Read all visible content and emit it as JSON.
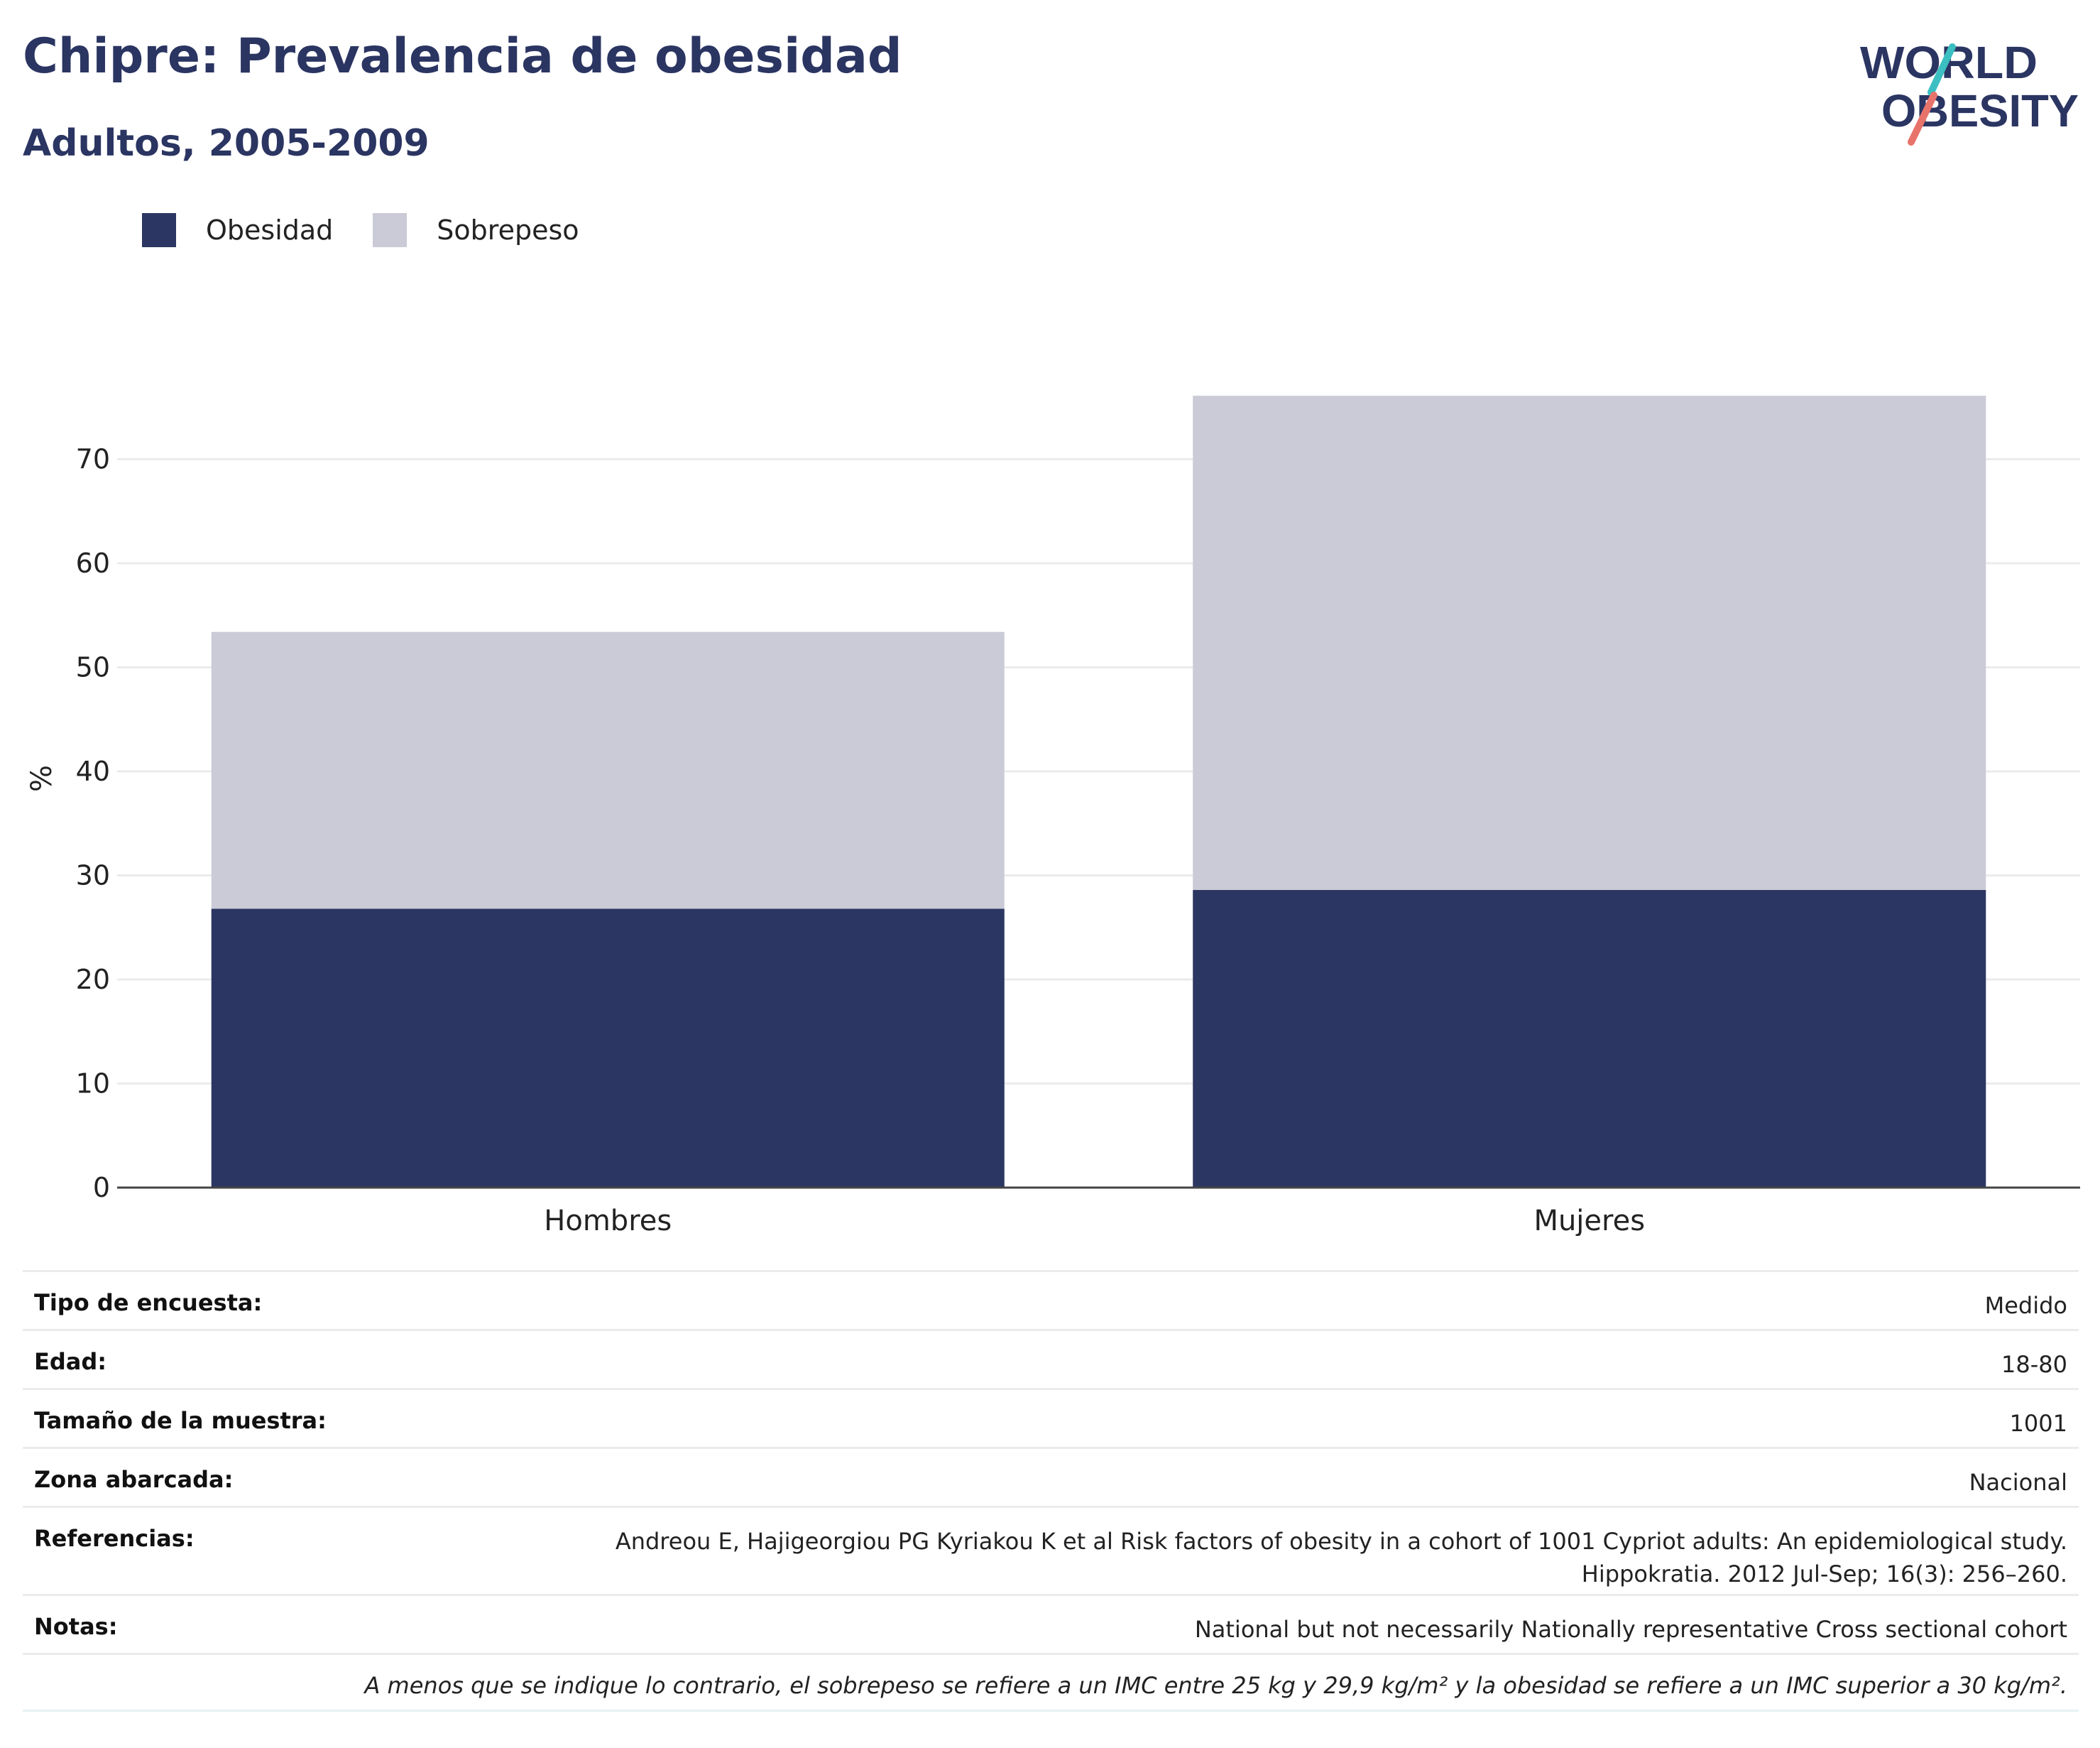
{
  "header": {
    "title": "Chipre: Prevalencia de obesidad",
    "subtitle": "Adultos, 2005-2009"
  },
  "logo": {
    "line1": "WORLD",
    "line2": "OBESITY"
  },
  "colors": {
    "obesidad": "#2b3662",
    "sobrepeso": "#cacbd7",
    "brand_teal": "#3bbfc1",
    "brand_coral": "#e8736b",
    "brand_navy": "#2b3562"
  },
  "chart_data": {
    "type": "bar",
    "stacked": true,
    "categories": [
      "Hombres",
      "Mujeres"
    ],
    "series": [
      {
        "name": "Obesidad",
        "values": [
          26.8,
          28.6
        ]
      },
      {
        "name": "Sobrepeso",
        "values": [
          26.6,
          47.5
        ]
      }
    ],
    "ylabel": "%",
    "ylim": [
      0,
      80
    ],
    "yticks": [
      0,
      10,
      20,
      30,
      40,
      50,
      60,
      70
    ],
    "grid": true,
    "legend": "top-left"
  },
  "table": {
    "rows": [
      {
        "label": "Tipo de encuesta:",
        "value": "Medido"
      },
      {
        "label": "Edad:",
        "value": "18-80"
      },
      {
        "label": "Tamaño de la muestra:",
        "value": "1001"
      },
      {
        "label": "Zona abarcada:",
        "value": "Nacional"
      },
      {
        "label": "Referencias:",
        "value": "Andreou E, Hajigeorgiou PG Kyriakou K et al Risk factors of obesity in a cohort of 1001 Cypriot adults: An epidemiological study.",
        "value2": "Hippokratia. 2012 Jul-Sep; 16(3): 256–260."
      },
      {
        "label": "Notas:",
        "value": "National but not necessarily Nationally representative Cross sectional cohort"
      }
    ],
    "footnote": "A menos que se indique lo contrario, el sobrepeso se refiere a un IMC entre 25 kg y 29,9 kg/m² y la obesidad se refiere a un IMC superior a 30 kg/m²."
  }
}
